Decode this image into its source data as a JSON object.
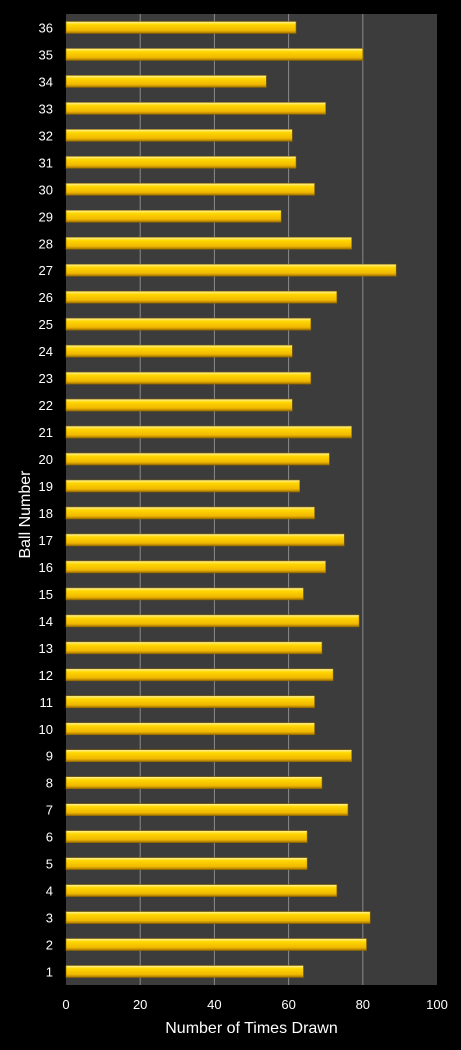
{
  "chart_data": {
    "type": "bar",
    "orientation": "horizontal",
    "title": "",
    "xlabel": "Number of Times Drawn",
    "ylabel": "Ball Number",
    "xlim": [
      0,
      100
    ],
    "xticks": [
      "0",
      "20",
      "40",
      "60",
      "80",
      "100"
    ],
    "grid": true,
    "colors": {
      "bar": "#ffd700",
      "plot_bg": "#3c3c3c",
      "page_bg": "#000000",
      "gridline": "#8a8a8a"
    },
    "categories": [
      "1",
      "2",
      "3",
      "4",
      "5",
      "6",
      "7",
      "8",
      "9",
      "10",
      "11",
      "12",
      "13",
      "14",
      "15",
      "16",
      "17",
      "18",
      "19",
      "20",
      "21",
      "22",
      "23",
      "24",
      "25",
      "26",
      "27",
      "28",
      "29",
      "30",
      "31",
      "32",
      "33",
      "34",
      "35",
      "36"
    ],
    "values": [
      64,
      81,
      82,
      73,
      65,
      65,
      76,
      69,
      77,
      67,
      67,
      72,
      69,
      79,
      64,
      70,
      75,
      67,
      63,
      71,
      77,
      61,
      66,
      61,
      66,
      73,
      89,
      77,
      58,
      67,
      62,
      61,
      70,
      54,
      80,
      62
    ]
  }
}
